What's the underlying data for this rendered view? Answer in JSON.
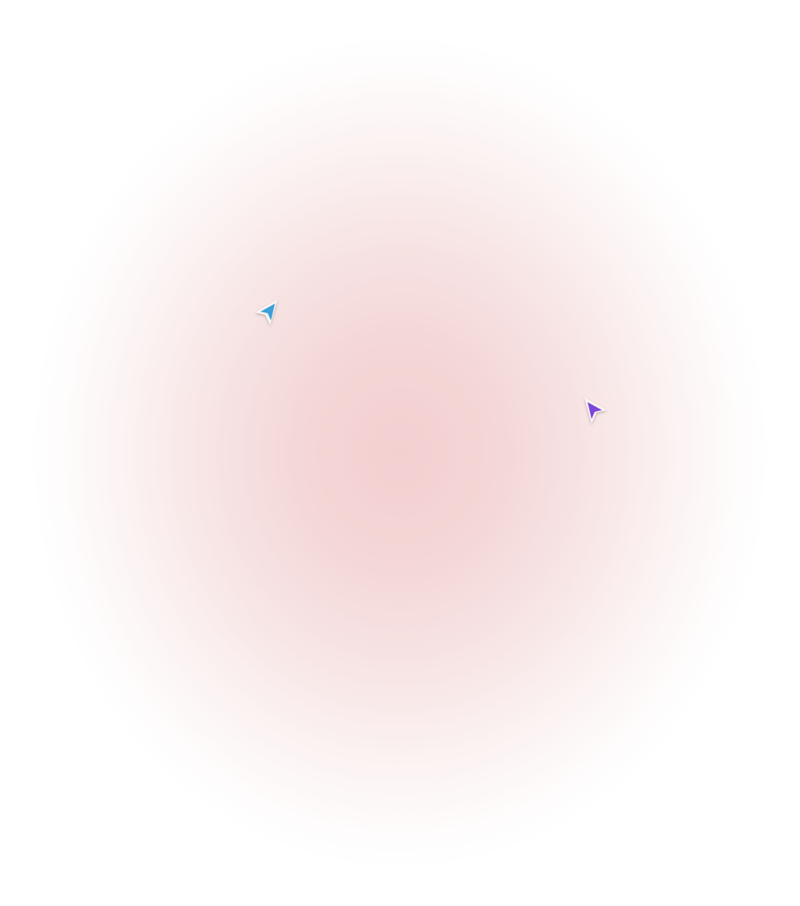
{
  "background": {
    "center_color": "#f3cfd0",
    "edge_color": "#ffffff"
  },
  "cursors": [
    {
      "name": "cursor-blue",
      "color": "#3a9fd8",
      "direction": "up-right"
    },
    {
      "name": "cursor-purple",
      "color": "#7b46d9",
      "direction": "up-left"
    }
  ]
}
